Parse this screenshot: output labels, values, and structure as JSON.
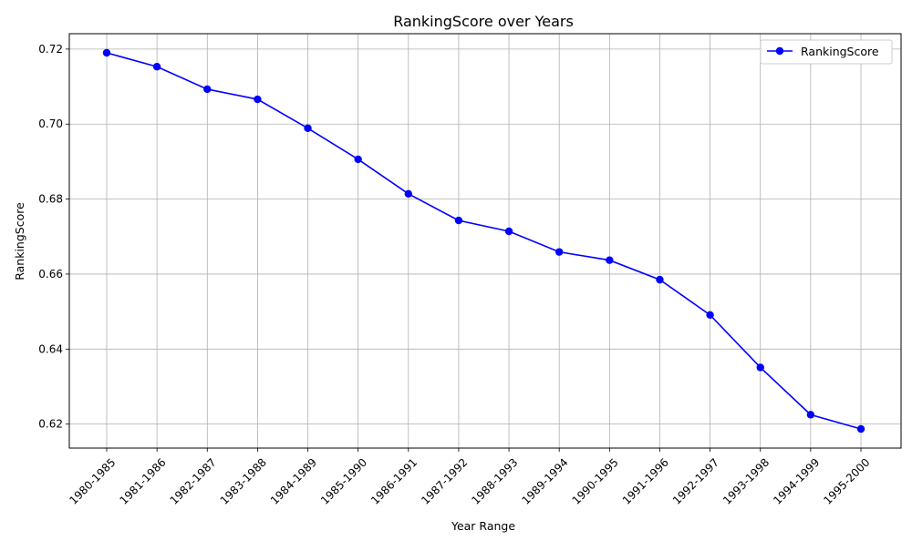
{
  "chart_data": {
    "type": "line",
    "title": "RankingScore over Years",
    "xlabel": "Year Range",
    "ylabel": "RankingScore",
    "categories": [
      "1980-1985",
      "1981-1986",
      "1982-1987",
      "1983-1988",
      "1984-1989",
      "1985-1990",
      "1986-1991",
      "1987-1992",
      "1988-1993",
      "1989-1994",
      "1990-1995",
      "1991-1996",
      "1992-1997",
      "1993-1998",
      "1994-1999",
      "1995-2000"
    ],
    "series": [
      {
        "name": "RankingScore",
        "values": [
          0.719,
          0.7153,
          0.7093,
          0.7066,
          0.6989,
          0.6906,
          0.6814,
          0.6743,
          0.6714,
          0.6659,
          0.6637,
          0.6585,
          0.6491,
          0.6351,
          0.6225,
          0.6187
        ],
        "color": "#0000ff",
        "marker": "circle"
      }
    ],
    "ylim": [
      0.6136,
      0.7241
    ],
    "yticks": [
      0.62,
      0.64,
      0.66,
      0.68,
      0.7,
      0.72
    ],
    "ytick_labels": [
      "0.62",
      "0.64",
      "0.66",
      "0.68",
      "0.70",
      "0.72"
    ],
    "grid": true,
    "legend_position": "top-right"
  }
}
